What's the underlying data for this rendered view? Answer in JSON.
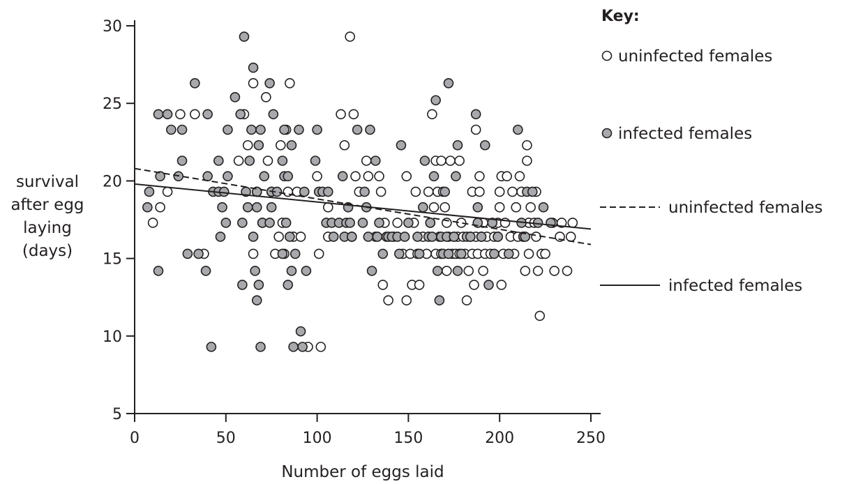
{
  "chart_data": {
    "type": "scatter",
    "title": "",
    "xlabel": "Number of eggs laid",
    "ylabel_lines": [
      "survival",
      "after egg",
      "laying",
      "(days)"
    ],
    "xlim": [
      0,
      250
    ],
    "ylim": [
      5,
      30
    ],
    "xticks": [
      0,
      50,
      100,
      150,
      200,
      250
    ],
    "yticks": [
      5,
      10,
      15,
      20,
      25,
      30
    ],
    "grid": false,
    "legend": {
      "title": "Key:",
      "placement": "right",
      "items": [
        {
          "label": "uninfected females",
          "marker": "open-circle"
        },
        {
          "label": "infected females",
          "marker": "filled-circle"
        },
        {
          "label": "uninfected females",
          "line": "dashed"
        },
        {
          "label": "infected females",
          "line": "solid"
        }
      ]
    },
    "colors": {
      "uninfected_fill": "#ffffff",
      "infected_fill": "#a7a9ac",
      "stroke": "#231f20"
    },
    "series": [
      {
        "name": "uninfected females",
        "marker": "open-circle",
        "points": [
          [
            10,
            17.3
          ],
          [
            14,
            18.3
          ],
          [
            18,
            19.3
          ],
          [
            25,
            24.3
          ],
          [
            33,
            24.3
          ],
          [
            38,
            15.3
          ],
          [
            57,
            21.3
          ],
          [
            60,
            24.3
          ],
          [
            62,
            22.3
          ],
          [
            65,
            26.3
          ],
          [
            65,
            15.3
          ],
          [
            67,
            19.3
          ],
          [
            70,
            17.3
          ],
          [
            72,
            25.4
          ],
          [
            73,
            21.3
          ],
          [
            75,
            19.3
          ],
          [
            77,
            15.3
          ],
          [
            79,
            16.4
          ],
          [
            80,
            22.3
          ],
          [
            81,
            17.3
          ],
          [
            82,
            15.3
          ],
          [
            83,
            23.3
          ],
          [
            84,
            19.3
          ],
          [
            85,
            26.3
          ],
          [
            87,
            16.4
          ],
          [
            89,
            19.3
          ],
          [
            91,
            16.4
          ],
          [
            95,
            9.3
          ],
          [
            100,
            20.3
          ],
          [
            101,
            15.3
          ],
          [
            102,
            9.3
          ],
          [
            106,
            18.3
          ],
          [
            106,
            16.4
          ],
          [
            113,
            24.3
          ],
          [
            115,
            22.3
          ],
          [
            118,
            29.3
          ],
          [
            119,
            16.4
          ],
          [
            120,
            24.3
          ],
          [
            121,
            20.3
          ],
          [
            123,
            19.3
          ],
          [
            127,
            21.3
          ],
          [
            128,
            20.3
          ],
          [
            132,
            16.4
          ],
          [
            134,
            20.3
          ],
          [
            135,
            19.3
          ],
          [
            136,
            13.3
          ],
          [
            137,
            17.3
          ],
          [
            139,
            12.3
          ],
          [
            142,
            16.4
          ],
          [
            144,
            17.3
          ],
          [
            147,
            15.3
          ],
          [
            149,
            20.3
          ],
          [
            149,
            12.3
          ],
          [
            151,
            15.3
          ],
          [
            152,
            13.3
          ],
          [
            153,
            17.3
          ],
          [
            154,
            19.3
          ],
          [
            155,
            15.3
          ],
          [
            156,
            13.3
          ],
          [
            158,
            16.4
          ],
          [
            160,
            15.3
          ],
          [
            161,
            19.3
          ],
          [
            162,
            17.3
          ],
          [
            163,
            24.3
          ],
          [
            164,
            18.3
          ],
          [
            165,
            21.3
          ],
          [
            165,
            15.3
          ],
          [
            166,
            19.3
          ],
          [
            167,
            16.4
          ],
          [
            168,
            21.3
          ],
          [
            168,
            15.3
          ],
          [
            169,
            19.3
          ],
          [
            170,
            18.3
          ],
          [
            171,
            17.3
          ],
          [
            171,
            14.2
          ],
          [
            172,
            16.4
          ],
          [
            173,
            21.3
          ],
          [
            174,
            15.3
          ],
          [
            175,
            16.4
          ],
          [
            176,
            15.3
          ],
          [
            177,
            16.4
          ],
          [
            178,
            21.3
          ],
          [
            178,
            15.3
          ],
          [
            179,
            17.3
          ],
          [
            180,
            16.4
          ],
          [
            181,
            15.3
          ],
          [
            182,
            12.3
          ],
          [
            183,
            14.2
          ],
          [
            184,
            16.4
          ],
          [
            185,
            19.3
          ],
          [
            185,
            15.3
          ],
          [
            186,
            13.3
          ],
          [
            187,
            23.3
          ],
          [
            187,
            16.4
          ],
          [
            188,
            15.3
          ],
          [
            189,
            20.3
          ],
          [
            189,
            19.3
          ],
          [
            190,
            16.4
          ],
          [
            191,
            14.2
          ],
          [
            191,
            17.3
          ],
          [
            192,
            15.3
          ],
          [
            193,
            16.4
          ],
          [
            195,
            15.3
          ],
          [
            197,
            16.4
          ],
          [
            199,
            16.4
          ],
          [
            199,
            17.3
          ],
          [
            200,
            18.3
          ],
          [
            200,
            19.3
          ],
          [
            201,
            20.3
          ],
          [
            201,
            13.3
          ],
          [
            202,
            15.3
          ],
          [
            203,
            17.3
          ],
          [
            204,
            20.3
          ],
          [
            206,
            16.4
          ],
          [
            207,
            19.3
          ],
          [
            208,
            15.3
          ],
          [
            209,
            18.3
          ],
          [
            210,
            16.4
          ],
          [
            211,
            20.3
          ],
          [
            212,
            19.3
          ],
          [
            213,
            16.4
          ],
          [
            214,
            14.2
          ],
          [
            215,
            22.3
          ],
          [
            215,
            21.3
          ],
          [
            216,
            17.3
          ],
          [
            216,
            15.3
          ],
          [
            217,
            18.3
          ],
          [
            219,
            17.3
          ],
          [
            220,
            19.3
          ],
          [
            220,
            16.4
          ],
          [
            221,
            14.2
          ],
          [
            222,
            11.3
          ],
          [
            223,
            15.3
          ],
          [
            225,
            15.3
          ],
          [
            229,
            17.3
          ],
          [
            230,
            14.2
          ],
          [
            233,
            16.4
          ],
          [
            234,
            17.3
          ],
          [
            237,
            14.2
          ],
          [
            239,
            16.4
          ],
          [
            240,
            17.3
          ]
        ]
      },
      {
        "name": "infected females",
        "marker": "filled-circle",
        "points": [
          [
            7,
            18.3
          ],
          [
            8,
            19.3
          ],
          [
            13,
            24.3
          ],
          [
            13,
            14.2
          ],
          [
            14,
            20.3
          ],
          [
            18,
            24.3
          ],
          [
            20,
            23.3
          ],
          [
            24,
            20.3
          ],
          [
            26,
            21.3
          ],
          [
            26,
            23.3
          ],
          [
            29,
            15.3
          ],
          [
            33,
            26.3
          ],
          [
            35,
            15.3
          ],
          [
            39,
            14.2
          ],
          [
            40,
            20.3
          ],
          [
            40,
            24.3
          ],
          [
            42,
            9.3
          ],
          [
            43,
            19.3
          ],
          [
            46,
            19.3
          ],
          [
            46,
            21.3
          ],
          [
            47,
            16.4
          ],
          [
            48,
            18.3
          ],
          [
            49,
            19.3
          ],
          [
            50,
            17.3
          ],
          [
            51,
            20.3
          ],
          [
            51,
            23.3
          ],
          [
            55,
            25.4
          ],
          [
            58,
            24.3
          ],
          [
            59,
            17.3
          ],
          [
            59,
            13.3
          ],
          [
            60,
            29.3
          ],
          [
            61,
            19.3
          ],
          [
            62,
            18.3
          ],
          [
            63,
            21.3
          ],
          [
            64,
            23.3
          ],
          [
            65,
            27.3
          ],
          [
            65,
            16.4
          ],
          [
            66,
            14.2
          ],
          [
            67,
            18.3
          ],
          [
            67,
            12.3
          ],
          [
            67,
            19.3
          ],
          [
            68,
            22.3
          ],
          [
            68,
            13.3
          ],
          [
            69,
            23.3
          ],
          [
            69,
            9.3
          ],
          [
            70,
            17.3
          ],
          [
            71,
            20.3
          ],
          [
            74,
            17.3
          ],
          [
            74,
            26.3
          ],
          [
            75,
            19.3
          ],
          [
            75,
            18.3
          ],
          [
            76,
            24.3
          ],
          [
            78,
            19.3
          ],
          [
            81,
            21.3
          ],
          [
            81,
            15.3
          ],
          [
            82,
            20.3
          ],
          [
            82,
            23.3
          ],
          [
            83,
            17.3
          ],
          [
            84,
            13.3
          ],
          [
            84,
            20.3
          ],
          [
            85,
            16.4
          ],
          [
            86,
            14.2
          ],
          [
            86,
            22.3
          ],
          [
            87,
            9.3
          ],
          [
            88,
            15.3
          ],
          [
            90,
            23.3
          ],
          [
            91,
            10.3
          ],
          [
            92,
            9.3
          ],
          [
            93,
            19.3
          ],
          [
            94,
            14.2
          ],
          [
            99,
            21.3
          ],
          [
            100,
            23.3
          ],
          [
            101,
            19.3
          ],
          [
            103,
            19.3
          ],
          [
            105,
            17.3
          ],
          [
            106,
            19.3
          ],
          [
            108,
            17.3
          ],
          [
            109,
            16.4
          ],
          [
            112,
            17.3
          ],
          [
            114,
            20.3
          ],
          [
            115,
            16.4
          ],
          [
            116,
            17.3
          ],
          [
            117,
            18.3
          ],
          [
            118,
            17.3
          ],
          [
            119,
            16.4
          ],
          [
            122,
            23.3
          ],
          [
            125,
            17.3
          ],
          [
            126,
            19.3
          ],
          [
            127,
            18.3
          ],
          [
            128,
            16.4
          ],
          [
            129,
            23.3
          ],
          [
            130,
            14.2
          ],
          [
            132,
            21.3
          ],
          [
            133,
            16.4
          ],
          [
            134,
            17.3
          ],
          [
            136,
            15.3
          ],
          [
            138,
            16.4
          ],
          [
            139,
            16.4
          ],
          [
            141,
            16.4
          ],
          [
            144,
            16.4
          ],
          [
            145,
            15.3
          ],
          [
            146,
            22.3
          ],
          [
            148,
            16.4
          ],
          [
            150,
            17.3
          ],
          [
            155,
            16.4
          ],
          [
            156,
            15.3
          ],
          [
            158,
            18.3
          ],
          [
            159,
            21.3
          ],
          [
            161,
            16.4
          ],
          [
            162,
            17.3
          ],
          [
            163,
            16.4
          ],
          [
            164,
            20.3
          ],
          [
            165,
            25.2
          ],
          [
            166,
            14.2
          ],
          [
            167,
            12.3
          ],
          [
            168,
            16.4
          ],
          [
            169,
            15.3
          ],
          [
            170,
            19.3
          ],
          [
            171,
            16.4
          ],
          [
            172,
            15.3
          ],
          [
            172,
            26.3
          ],
          [
            175,
            16.4
          ],
          [
            176,
            20.3
          ],
          [
            177,
            22.3
          ],
          [
            177,
            14.2
          ],
          [
            179,
            15.3
          ],
          [
            182,
            16.4
          ],
          [
            184,
            16.4
          ],
          [
            187,
            24.3
          ],
          [
            188,
            18.3
          ],
          [
            188,
            17.3
          ],
          [
            190,
            16.4
          ],
          [
            192,
            22.3
          ],
          [
            194,
            13.3
          ],
          [
            196,
            17.3
          ],
          [
            197,
            15.3
          ],
          [
            199,
            16.4
          ],
          [
            205,
            15.3
          ],
          [
            210,
            23.3
          ],
          [
            212,
            17.3
          ],
          [
            213,
            16.4
          ],
          [
            214,
            16.4
          ],
          [
            215,
            19.3
          ],
          [
            218,
            19.3
          ],
          [
            221,
            17.3
          ],
          [
            224,
            18.3
          ],
          [
            228,
            17.3
          ]
        ]
      },
      {
        "name": "uninfected females",
        "kind": "line",
        "style": "dashed",
        "x": [
          0,
          250
        ],
        "y": [
          20.8,
          15.9
        ]
      },
      {
        "name": "infected females",
        "kind": "line",
        "style": "solid",
        "x": [
          0,
          250
        ],
        "y": [
          19.8,
          16.9
        ]
      }
    ]
  }
}
